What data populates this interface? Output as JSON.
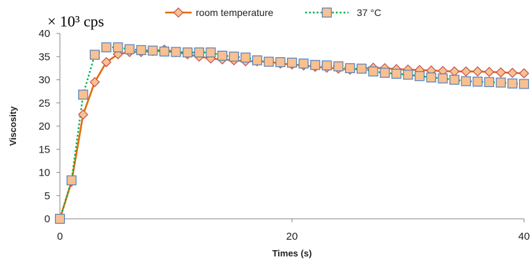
{
  "chart_data": {
    "type": "line",
    "unit_label": "× 10³ cps",
    "xlabel": "Times (s)",
    "ylabel": "Viscosity",
    "xlim": [
      0,
      40
    ],
    "ylim": [
      0,
      40
    ],
    "x_ticks": [
      0,
      20,
      40
    ],
    "y_ticks": [
      0,
      5,
      10,
      15,
      20,
      25,
      30,
      35,
      40
    ],
    "legend_position": "top",
    "grid": false,
    "series": [
      {
        "name": "room temperature",
        "color": "#e46c0a",
        "marker": "diamond",
        "marker_fill": "#fac090",
        "marker_edge": "#c0504d",
        "line_style": "solid",
        "x": [
          0,
          1,
          2,
          3,
          4,
          5,
          6,
          7,
          8,
          9,
          10,
          11,
          12,
          13,
          14,
          15,
          16,
          17,
          18,
          19,
          20,
          21,
          22,
          23,
          24,
          25,
          26,
          27,
          28,
          29,
          30,
          31,
          32,
          33,
          34,
          35,
          36,
          37,
          38,
          39,
          40
        ],
        "y": [
          0,
          8,
          22.5,
          29.5,
          33.8,
          35.5,
          36,
          36,
          36.2,
          36.5,
          36,
          35.5,
          35,
          34.6,
          34.4,
          34.2,
          34,
          34,
          33.9,
          33.5,
          33.3,
          33.1,
          32.8,
          32.6,
          32.4,
          32.2,
          32.4,
          32.6,
          32.5,
          32.3,
          32.2,
          32.1,
          32,
          31.9,
          31.8,
          31.8,
          31.8,
          31.7,
          31.6,
          31.5,
          31.4
        ]
      },
      {
        "name": "37 °C",
        "color": "#00b050",
        "marker": "square",
        "marker_fill": "#fac090",
        "marker_edge": "#4f81bd",
        "line_style": "dotted",
        "x": [
          0,
          1,
          2,
          3,
          4,
          5,
          6,
          7,
          8,
          9,
          10,
          11,
          12,
          13,
          14,
          15,
          16,
          17,
          18,
          19,
          20,
          21,
          22,
          23,
          24,
          25,
          26,
          27,
          28,
          29,
          30,
          31,
          32,
          33,
          34,
          35,
          36,
          37,
          38,
          39,
          40
        ],
        "y": [
          0,
          8.3,
          26.8,
          35.4,
          37,
          37,
          36.6,
          36.4,
          36.3,
          36.1,
          36,
          35.9,
          35.9,
          35.9,
          35.2,
          35,
          34.8,
          34.2,
          33.9,
          33.8,
          33.7,
          33.5,
          33.2,
          33.1,
          32.9,
          32.5,
          32.4,
          31.8,
          31.5,
          31.3,
          31.1,
          30.8,
          30.5,
          30.3,
          30,
          29.7,
          29.6,
          29.5,
          29.4,
          29.2,
          29.1
        ]
      }
    ]
  }
}
